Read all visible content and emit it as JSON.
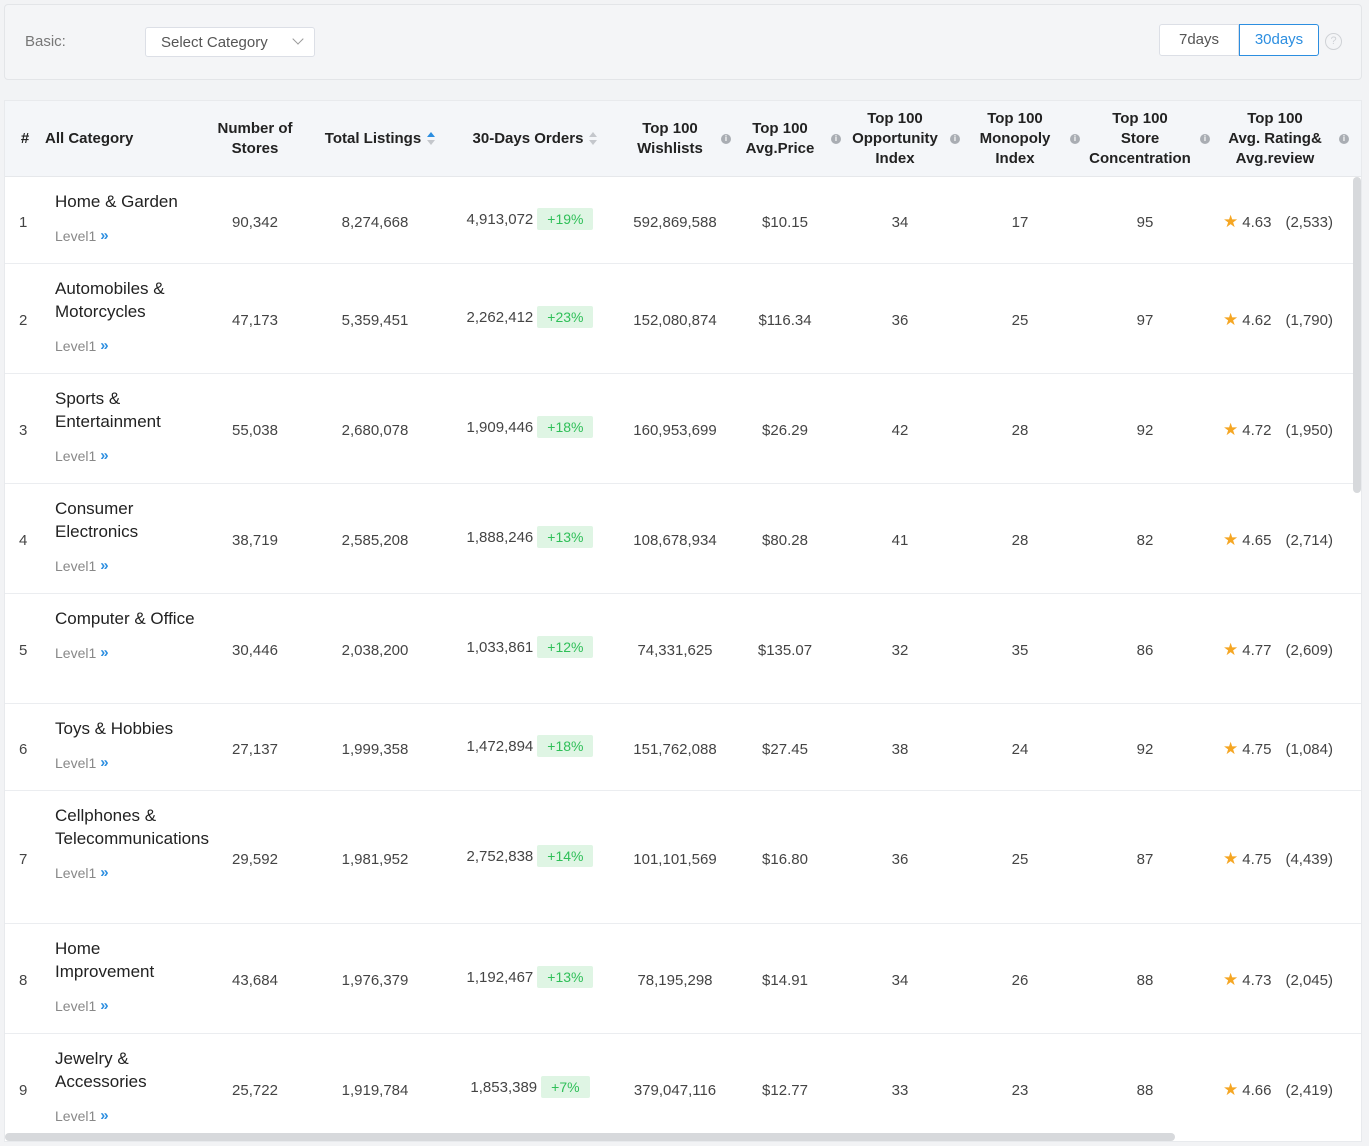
{
  "filter": {
    "label": "Basic:",
    "select_placeholder": "Select Category",
    "periods": [
      "7days",
      "30days"
    ],
    "active_period": "30days",
    "help": "?"
  },
  "table": {
    "headers": {
      "idx": "#",
      "category": "All Category",
      "stores": [
        "Number of",
        "Stores"
      ],
      "listings": "Total Listings",
      "orders": "30-Days Orders",
      "wishlists": [
        "Top 100",
        "Wishlists"
      ],
      "avg_price": [
        "Top 100",
        "Avg.Price"
      ],
      "opportunity": [
        "Top 100",
        "Opportunity",
        "Index"
      ],
      "monopoly": [
        "Top 100",
        "Monopoly",
        "Index"
      ],
      "concentration": [
        "Top 100",
        "Store",
        "Concentration"
      ],
      "rating": [
        "Top 100",
        "Avg. Rating&",
        "Avg.review"
      ]
    },
    "level_label": "Level1",
    "rows": [
      {
        "idx": "1",
        "name": "Home & Garden",
        "stores": "90,342",
        "listings": "8,274,668",
        "orders": "4,913,072",
        "growth": "+19%",
        "wishlists": "592,869,588",
        "price": "$10.15",
        "opportunity": "34",
        "monopoly": "17",
        "concentration": "95",
        "rating": "4.63",
        "reviews": "(2,533)"
      },
      {
        "idx": "2",
        "name": "Automobiles & Motorcycles",
        "stores": "47,173",
        "listings": "5,359,451",
        "orders": "2,262,412",
        "growth": "+23%",
        "wishlists": "152,080,874",
        "price": "$116.34",
        "opportunity": "36",
        "monopoly": "25",
        "concentration": "97",
        "rating": "4.62",
        "reviews": "(1,790)"
      },
      {
        "idx": "3",
        "name": "Sports & Entertainment",
        "stores": "55,038",
        "listings": "2,680,078",
        "orders": "1,909,446",
        "growth": "+18%",
        "wishlists": "160,953,699",
        "price": "$26.29",
        "opportunity": "42",
        "monopoly": "28",
        "concentration": "92",
        "rating": "4.72",
        "reviews": "(1,950)"
      },
      {
        "idx": "4",
        "name": "Consumer Electronics",
        "stores": "38,719",
        "listings": "2,585,208",
        "orders": "1,888,246",
        "growth": "+13%",
        "wishlists": "108,678,934",
        "price": "$80.28",
        "opportunity": "41",
        "monopoly": "28",
        "concentration": "82",
        "rating": "4.65",
        "reviews": "(2,714)"
      },
      {
        "idx": "5",
        "name": "Computer & Office",
        "stores": "30,446",
        "listings": "2,038,200",
        "orders": "1,033,861",
        "growth": "+12%",
        "wishlists": "74,331,625",
        "price": "$135.07",
        "opportunity": "32",
        "monopoly": "35",
        "concentration": "86",
        "rating": "4.77",
        "reviews": "(2,609)"
      },
      {
        "idx": "6",
        "name": "Toys & Hobbies",
        "stores": "27,137",
        "listings": "1,999,358",
        "orders": "1,472,894",
        "growth": "+18%",
        "wishlists": "151,762,088",
        "price": "$27.45",
        "opportunity": "38",
        "monopoly": "24",
        "concentration": "92",
        "rating": "4.75",
        "reviews": "(1,084)"
      },
      {
        "idx": "7",
        "name": "Cellphones & Telecommunications",
        "stores": "29,592",
        "listings": "1,981,952",
        "orders": "2,752,838",
        "growth": "+14%",
        "wishlists": "101,101,569",
        "price": "$16.80",
        "opportunity": "36",
        "monopoly": "25",
        "concentration": "87",
        "rating": "4.75",
        "reviews": "(4,439)"
      },
      {
        "idx": "8",
        "name": "Home Improvement",
        "stores": "43,684",
        "listings": "1,976,379",
        "orders": "1,192,467",
        "growth": "+13%",
        "wishlists": "78,195,298",
        "price": "$14.91",
        "opportunity": "34",
        "monopoly": "26",
        "concentration": "88",
        "rating": "4.73",
        "reviews": "(2,045)"
      },
      {
        "idx": "9",
        "name": "Jewelry & Accessories",
        "stores": "25,722",
        "listings": "1,919,784",
        "orders": "1,853,389",
        "growth": "+7%",
        "wishlists": "379,047,116",
        "price": "$12.77",
        "opportunity": "33",
        "monopoly": "23",
        "concentration": "88",
        "rating": "4.66",
        "reviews": "(2,419)"
      }
    ]
  },
  "colors": {
    "accent": "#2c8ee0",
    "growth_bg": "#dff5e4",
    "growth_text": "#2fbf58",
    "star": "#f5a623"
  }
}
